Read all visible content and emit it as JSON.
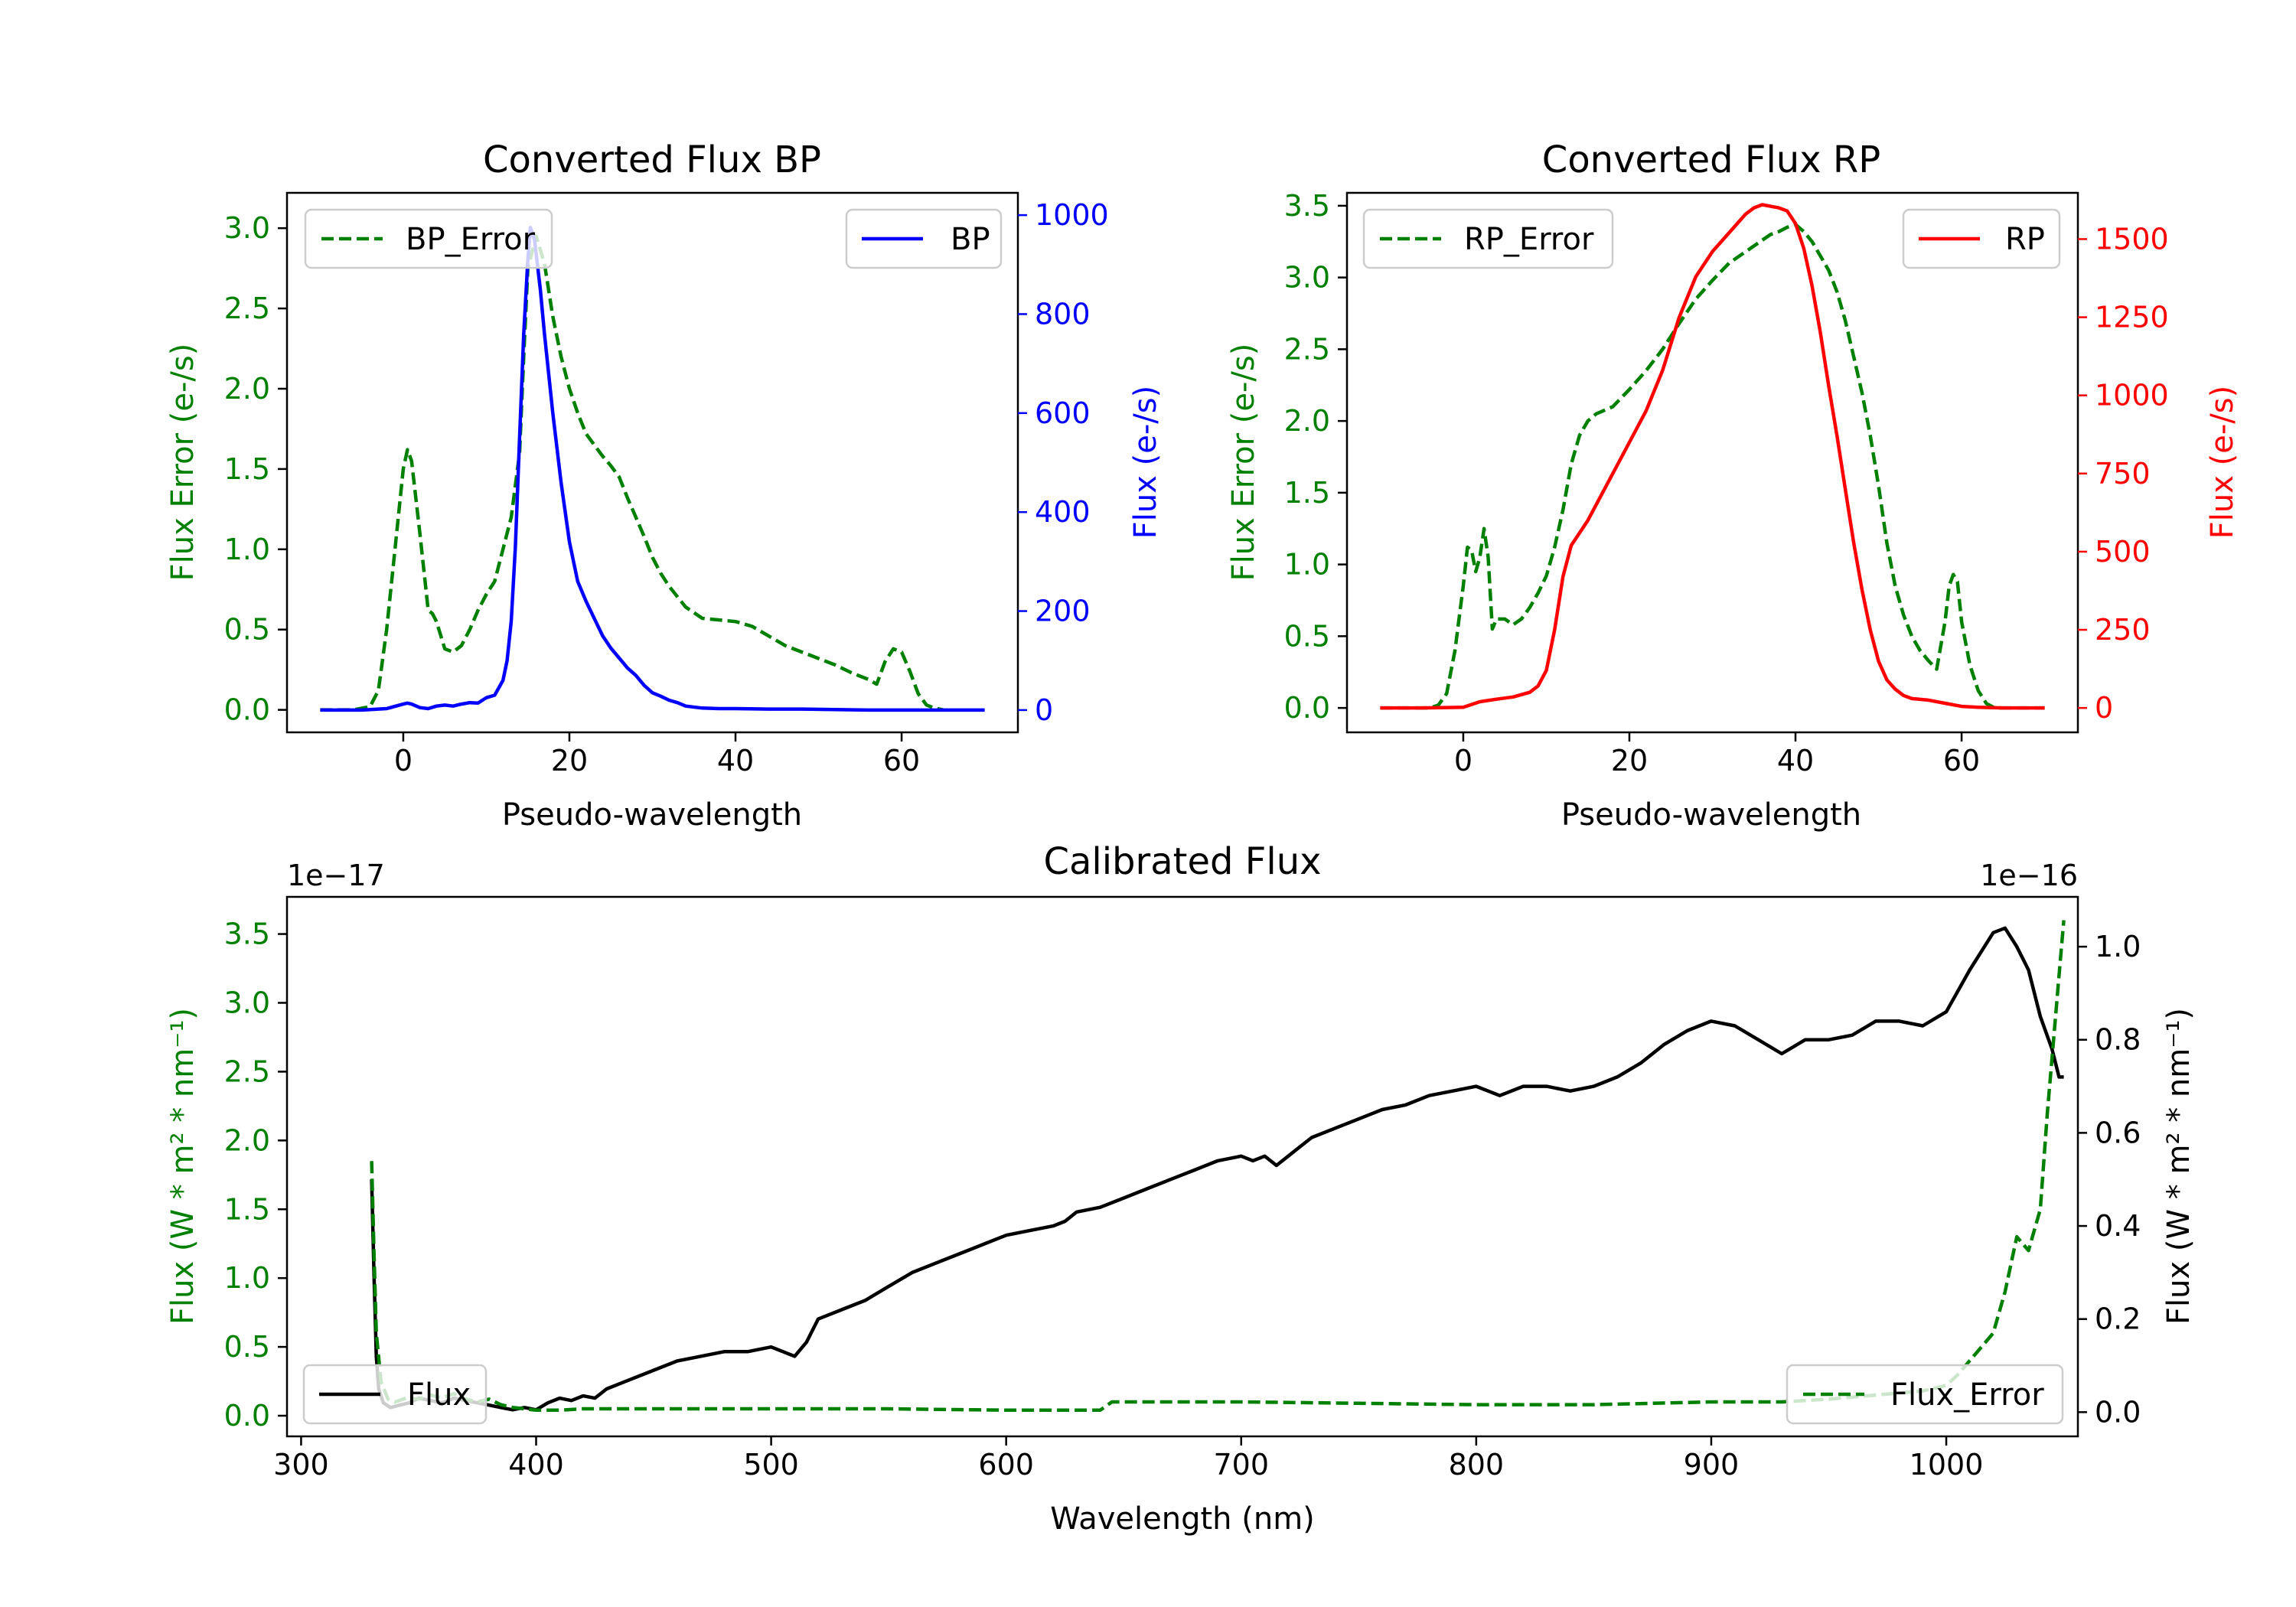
{
  "colors": {
    "bp": "#0000ff",
    "rp": "#ff0000",
    "error": "#008000",
    "flux": "#000000",
    "axis": "#000000"
  },
  "chart_data": [
    {
      "id": "bp",
      "type": "line",
      "title": "Converted Flux BP",
      "xlabel": "Pseudo-wavelength",
      "ylabel_left": "Flux Error (e-/s)",
      "ylabel_right": "Flux (e-/s)",
      "xlim": [
        -14,
        74
      ],
      "ylim_left": [
        -0.14,
        3.22
      ],
      "ylim_right": [
        -45,
        1045
      ],
      "xticks": [
        0,
        20,
        40,
        60
      ],
      "yticks_left": [
        0.0,
        0.5,
        1.0,
        1.5,
        2.0,
        2.5,
        3.0
      ],
      "yticks_right": [
        0,
        200,
        400,
        600,
        800,
        1000
      ],
      "ytick_labels_left": [
        "0.0",
        "0.5",
        "1.0",
        "1.5",
        "2.0",
        "2.5",
        "3.0"
      ],
      "ytick_labels_right": [
        "0",
        "200",
        "400",
        "600",
        "800",
        "1000"
      ],
      "legend_left": "BP_Error",
      "legend_right": "BP",
      "series": [
        {
          "name": "BP_Error",
          "axis": "left",
          "style": "dashed",
          "color": "#008000",
          "x": [
            -10,
            -6,
            -4,
            -3,
            -2,
            -1,
            0,
            0.5,
            1,
            2,
            3,
            3.5,
            4,
            5,
            6,
            7,
            8,
            9,
            10,
            11,
            12,
            13,
            14,
            14.5,
            15,
            16,
            17,
            18,
            19,
            20,
            21,
            22,
            23,
            24,
            25,
            26,
            27,
            28,
            29,
            30,
            31,
            32,
            34,
            36,
            38,
            40,
            42,
            44,
            46,
            48,
            50,
            52,
            54,
            56,
            57,
            58,
            59,
            60,
            61,
            62,
            63,
            64,
            65
          ],
          "y": [
            0.0,
            0.0,
            0.02,
            0.12,
            0.5,
            1.0,
            1.5,
            1.62,
            1.55,
            1.1,
            0.62,
            0.6,
            0.55,
            0.38,
            0.36,
            0.4,
            0.5,
            0.62,
            0.72,
            0.8,
            1.0,
            1.2,
            1.6,
            2.2,
            2.75,
            2.95,
            2.78,
            2.45,
            2.2,
            2.0,
            1.85,
            1.72,
            1.65,
            1.58,
            1.52,
            1.45,
            1.32,
            1.2,
            1.08,
            0.95,
            0.85,
            0.77,
            0.64,
            0.57,
            0.56,
            0.55,
            0.52,
            0.46,
            0.4,
            0.36,
            0.32,
            0.28,
            0.23,
            0.19,
            0.16,
            0.3,
            0.38,
            0.36,
            0.24,
            0.1,
            0.03,
            0.01,
            0.0
          ]
        },
        {
          "name": "BP",
          "axis": "right",
          "style": "solid",
          "color": "#0000ff",
          "x": [
            -10,
            -5,
            -2,
            0,
            0.5,
            1,
            2,
            3,
            4,
            5,
            6,
            7,
            8,
            9,
            10,
            11,
            12,
            12.5,
            13,
            13.5,
            14,
            14.5,
            15,
            15.3,
            15.8,
            16.5,
            17,
            18,
            19,
            20,
            21,
            22,
            23,
            24,
            25,
            26,
            27,
            28,
            29,
            30,
            31,
            32,
            33,
            34,
            36,
            38,
            40,
            44,
            48,
            52,
            56,
            60,
            64,
            68,
            70
          ],
          "y": [
            0,
            0,
            3,
            12,
            14,
            12,
            5,
            3,
            8,
            10,
            8,
            12,
            15,
            14,
            25,
            30,
            60,
            100,
            180,
            330,
            550,
            760,
            910,
            975,
            950,
            850,
            760,
            600,
            460,
            340,
            260,
            220,
            185,
            150,
            125,
            105,
            85,
            70,
            50,
            35,
            28,
            20,
            15,
            8,
            4,
            3,
            3,
            2,
            2,
            1,
            0,
            0,
            0,
            0,
            0
          ]
        }
      ]
    },
    {
      "id": "rp",
      "type": "line",
      "title": "Converted Flux RP",
      "xlabel": "Pseudo-wavelength",
      "ylabel_left": "Flux Error (e-/s)",
      "ylabel_right": "Flux (e-/s)",
      "xlim": [
        -14,
        74
      ],
      "ylim_left": [
        -0.17,
        3.59
      ],
      "ylim_right": [
        -78,
        1648
      ],
      "xticks": [
        0,
        20,
        40,
        60
      ],
      "yticks_left": [
        0.0,
        0.5,
        1.0,
        1.5,
        2.0,
        2.5,
        3.0,
        3.5
      ],
      "yticks_right": [
        0,
        250,
        500,
        750,
        1000,
        1250,
        1500
      ],
      "ytick_labels_left": [
        "0.0",
        "0.5",
        "1.0",
        "1.5",
        "2.0",
        "2.5",
        "3.0",
        "3.5"
      ],
      "ytick_labels_right": [
        "0",
        "250",
        "500",
        "750",
        "1000",
        "1250",
        "1500"
      ],
      "legend_left": "RP_Error",
      "legend_right": "RP",
      "series": [
        {
          "name": "RP_Error",
          "axis": "left",
          "style": "dashed",
          "color": "#008000",
          "x": [
            -10,
            -5,
            -4,
            -3,
            -2,
            -1,
            0,
            0.5,
            1,
            1.5,
            2,
            2.5,
            3,
            3.5,
            4,
            5,
            6,
            7,
            8,
            9,
            10,
            11,
            12,
            13,
            14,
            15,
            16,
            18,
            20,
            22,
            24,
            26,
            28,
            30,
            32,
            34,
            36,
            37,
            38,
            39,
            40,
            41,
            42,
            43,
            44,
            45,
            46,
            47,
            48,
            49,
            50,
            51,
            52,
            53,
            54,
            55,
            56,
            57,
            58,
            58.5,
            59,
            59.5,
            60,
            61,
            62,
            63,
            64,
            65,
            70
          ],
          "y": [
            0.0,
            0.0,
            0.0,
            0.02,
            0.1,
            0.4,
            0.85,
            1.12,
            1.1,
            0.95,
            1.05,
            1.25,
            1.05,
            0.55,
            0.62,
            0.62,
            0.58,
            0.62,
            0.7,
            0.8,
            0.92,
            1.12,
            1.38,
            1.7,
            1.9,
            2.0,
            2.05,
            2.1,
            2.22,
            2.35,
            2.5,
            2.68,
            2.85,
            2.98,
            3.1,
            3.18,
            3.26,
            3.3,
            3.32,
            3.35,
            3.37,
            3.32,
            3.25,
            3.15,
            3.05,
            2.9,
            2.7,
            2.45,
            2.2,
            1.9,
            1.55,
            1.15,
            0.85,
            0.65,
            0.5,
            0.4,
            0.33,
            0.27,
            0.6,
            0.85,
            0.93,
            0.88,
            0.6,
            0.3,
            0.12,
            0.03,
            0.0,
            0.0,
            0.0
          ]
        },
        {
          "name": "RP",
          "axis": "right",
          "style": "solid",
          "color": "#ff0000",
          "x": [
            -10,
            -5,
            0,
            2,
            4,
            6,
            8,
            9,
            10,
            11,
            12,
            13,
            14,
            15,
            16,
            18,
            20,
            22,
            24,
            26,
            28,
            30,
            32,
            34,
            35,
            36,
            37,
            38,
            39,
            40,
            41,
            42,
            43,
            44,
            45,
            46,
            47,
            48,
            49,
            50,
            51,
            52,
            53,
            54,
            56,
            58,
            60,
            62,
            65,
            70
          ],
          "y": [
            0,
            0,
            2,
            20,
            28,
            35,
            50,
            70,
            120,
            250,
            420,
            520,
            560,
            600,
            650,
            750,
            850,
            950,
            1080,
            1250,
            1380,
            1460,
            1520,
            1580,
            1600,
            1610,
            1605,
            1600,
            1590,
            1550,
            1470,
            1350,
            1200,
            1030,
            870,
            700,
            530,
            380,
            250,
            150,
            90,
            60,
            40,
            30,
            25,
            15,
            5,
            2,
            0,
            0
          ]
        }
      ]
    },
    {
      "id": "calibrated",
      "type": "line",
      "title": "Calibrated Flux",
      "xlabel": "Wavelength (nm)",
      "ylabel_left": "Flux (W * m² * nm⁻¹)",
      "ylabel_right": "Flux (W * m² * nm⁻¹)",
      "offset_left": "1e−17",
      "offset_right": "1e−16",
      "xlim": [
        294,
        1056
      ],
      "ylim_left": [
        -0.15,
        3.77
      ],
      "ylim_right": [
        -0.052,
        1.107
      ],
      "xticks": [
        300,
        400,
        500,
        600,
        700,
        800,
        900,
        1000
      ],
      "yticks_left": [
        0.0,
        0.5,
        1.0,
        1.5,
        2.0,
        2.5,
        3.0,
        3.5
      ],
      "yticks_right": [
        0.0,
        0.2,
        0.4,
        0.6,
        0.8,
        1.0
      ],
      "ytick_labels_left": [
        "0.0",
        "0.5",
        "1.0",
        "1.5",
        "2.0",
        "2.5",
        "3.0",
        "3.5"
      ],
      "ytick_labels_right": [
        "0.0",
        "0.2",
        "0.4",
        "0.6",
        "0.8",
        "1.0"
      ],
      "legend_left": "Flux",
      "legend_right": "Flux_Error",
      "series": [
        {
          "name": "Flux",
          "axis": "right",
          "style": "solid",
          "color": "#000000",
          "x": [
            330,
            331,
            332,
            333,
            335,
            338,
            342,
            346,
            350,
            355,
            360,
            365,
            370,
            375,
            380,
            385,
            390,
            395,
            400,
            405,
            410,
            415,
            420,
            425,
            430,
            440,
            450,
            460,
            470,
            480,
            490,
            500,
            505,
            510,
            515,
            520,
            530,
            540,
            550,
            560,
            575,
            590,
            600,
            610,
            620,
            625,
            630,
            640,
            650,
            660,
            670,
            680,
            690,
            700,
            705,
            710,
            715,
            720,
            725,
            730,
            740,
            750,
            760,
            770,
            780,
            790,
            800,
            810,
            820,
            830,
            840,
            850,
            860,
            870,
            880,
            890,
            900,
            910,
            920,
            930,
            940,
            950,
            960,
            970,
            980,
            990,
            1000,
            1010,
            1020,
            1025,
            1030,
            1035,
            1040,
            1045,
            1048,
            1050
          ],
          "y": [
            0.5,
            0.3,
            0.12,
            0.05,
            0.02,
            0.01,
            0.015,
            0.02,
            0.03,
            0.025,
            0.02,
            0.03,
            0.025,
            0.02,
            0.015,
            0.01,
            0.005,
            0.01,
            0.005,
            0.02,
            0.03,
            0.025,
            0.035,
            0.03,
            0.05,
            0.07,
            0.09,
            0.11,
            0.12,
            0.13,
            0.13,
            0.14,
            0.13,
            0.12,
            0.15,
            0.2,
            0.22,
            0.24,
            0.27,
            0.3,
            0.33,
            0.36,
            0.38,
            0.39,
            0.4,
            0.41,
            0.43,
            0.44,
            0.46,
            0.48,
            0.5,
            0.52,
            0.54,
            0.55,
            0.54,
            0.55,
            0.53,
            0.55,
            0.57,
            0.59,
            0.61,
            0.63,
            0.65,
            0.66,
            0.68,
            0.69,
            0.7,
            0.68,
            0.7,
            0.7,
            0.69,
            0.7,
            0.72,
            0.75,
            0.79,
            0.82,
            0.84,
            0.83,
            0.8,
            0.77,
            0.8,
            0.8,
            0.81,
            0.84,
            0.84,
            0.83,
            0.86,
            0.95,
            1.03,
            1.04,
            1.0,
            0.95,
            0.85,
            0.78,
            0.72,
            0.72
          ]
        },
        {
          "name": "Flux_Error",
          "axis": "left",
          "style": "dashed",
          "color": "#008000",
          "x": [
            330,
            331,
            332,
            334,
            337,
            340,
            345,
            350,
            355,
            360,
            365,
            370,
            375,
            380,
            385,
            390,
            400,
            410,
            420,
            450,
            500,
            550,
            600,
            640,
            645,
            700,
            750,
            800,
            850,
            900,
            930,
            950,
            970,
            990,
            1000,
            1005,
            1010,
            1015,
            1020,
            1025,
            1030,
            1035,
            1040,
            1043,
            1046,
            1048,
            1050
          ],
          "y": [
            1.85,
            1.2,
            0.6,
            0.25,
            0.12,
            0.1,
            0.13,
            0.12,
            0.15,
            0.13,
            0.16,
            0.12,
            0.1,
            0.12,
            0.08,
            0.06,
            0.04,
            0.04,
            0.05,
            0.05,
            0.05,
            0.05,
            0.04,
            0.04,
            0.1,
            0.1,
            0.09,
            0.08,
            0.08,
            0.1,
            0.1,
            0.12,
            0.15,
            0.18,
            0.22,
            0.3,
            0.4,
            0.5,
            0.6,
            0.9,
            1.3,
            1.2,
            1.5,
            2.2,
            2.8,
            3.2,
            3.6
          ]
        }
      ]
    }
  ]
}
